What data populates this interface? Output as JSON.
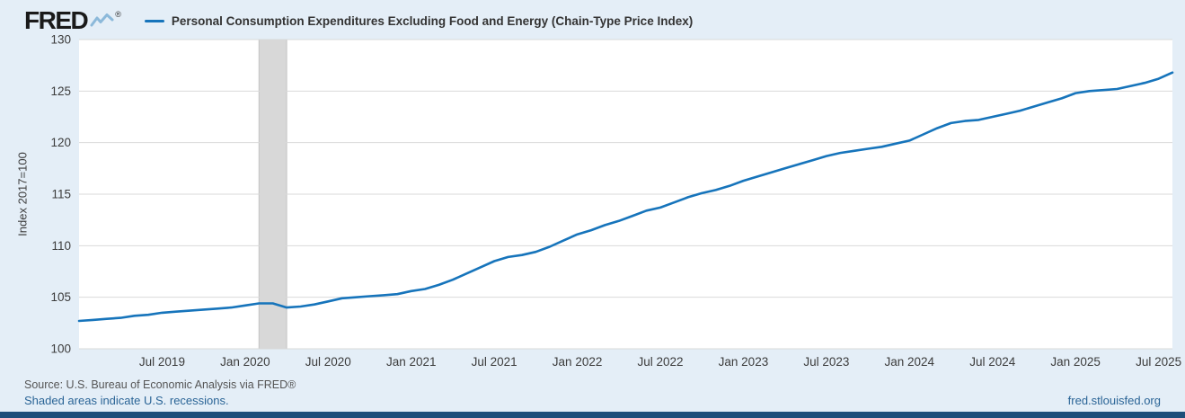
{
  "header": {
    "logo_text": "FRED",
    "registered_mark": "®",
    "legend_label": "Personal Consumption Expenditures Excluding Food and Energy (Chain-Type Price Index)"
  },
  "footer": {
    "source_text": "Source: U.S. Bureau of Economic Analysis via FRED®",
    "recession_note": "Shaded areas indicate U.S. recessions.",
    "site_link": "fred.stlouisfed.org"
  },
  "colors": {
    "background": "#e4eef7",
    "plot_background": "#ffffff",
    "gridline": "#d9d9d9",
    "recession_band": "#d8d8d8",
    "recession_band_edge": "#c4c4c4",
    "series_line": "#1674bb",
    "link": "#2a6496",
    "bottom_bar": "#1e4e79",
    "text_dark": "#1a1a1a",
    "text_axis": "#3c3c3c"
  },
  "chart_data": {
    "type": "line",
    "title": "Personal Consumption Expenditures Excluding Food and Energy (Chain-Type Price Index)",
    "ylabel": "Index 2017=100",
    "ylim": [
      100,
      130
    ],
    "y_ticks": [
      100,
      105,
      110,
      115,
      120,
      125,
      130
    ],
    "frequency": "monthly",
    "x_start": "2019-01",
    "x_end": "2025-08",
    "x_tick_labels": [
      "Jul 2019",
      "Jan 2020",
      "Jul 2020",
      "Jan 2021",
      "Jul 2021",
      "Jan 2022",
      "Jul 2022",
      "Jan 2023",
      "Jul 2023",
      "Jan 2024",
      "Jul 2024",
      "Jan 2025",
      "Jul 2025"
    ],
    "x_tick_month_indices": [
      6,
      12,
      18,
      24,
      30,
      36,
      42,
      48,
      54,
      60,
      66,
      72,
      78
    ],
    "values": [
      102.7,
      102.8,
      102.9,
      103.0,
      103.2,
      103.3,
      103.5,
      103.6,
      103.7,
      103.8,
      103.9,
      104.0,
      104.2,
      104.4,
      104.4,
      104.0,
      104.1,
      104.3,
      104.6,
      104.9,
      105.0,
      105.1,
      105.2,
      105.3,
      105.6,
      105.8,
      106.2,
      106.7,
      107.3,
      107.9,
      108.5,
      108.9,
      109.1,
      109.4,
      109.9,
      110.5,
      111.1,
      111.5,
      112.0,
      112.4,
      112.9,
      113.4,
      113.7,
      114.2,
      114.7,
      115.1,
      115.4,
      115.8,
      116.3,
      116.7,
      117.1,
      117.5,
      117.9,
      118.3,
      118.7,
      119.0,
      119.2,
      119.4,
      119.6,
      119.9,
      120.2,
      120.8,
      121.4,
      121.9,
      122.1,
      122.2,
      122.5,
      122.8,
      123.1,
      123.5,
      123.9,
      124.3,
      124.8,
      125.0,
      125.1,
      125.2,
      125.5,
      125.8,
      126.2,
      126.8
    ],
    "recession_bands": [
      {
        "start": "2020-02",
        "end": "2020-04",
        "start_index": 13,
        "end_index": 15
      }
    ],
    "grid": "horizontal",
    "legend_position": "top"
  }
}
